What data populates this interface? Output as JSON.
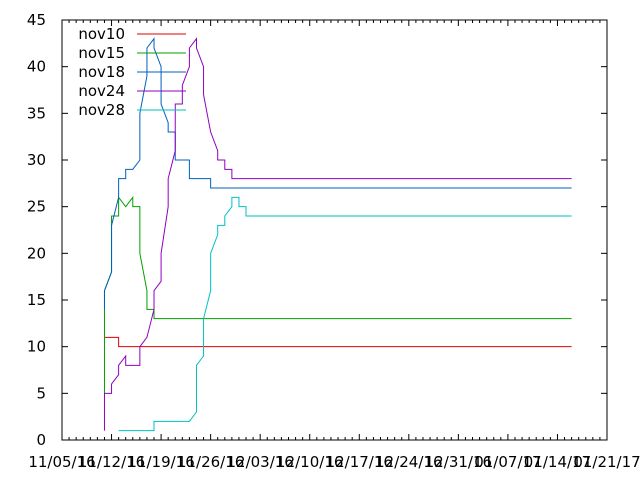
{
  "chart_data": {
    "type": "line",
    "x_tick_labels": [
      "11/05/16",
      "11/12/16",
      "11/19/16",
      "11/26/16",
      "12/03/16",
      "12/10/16",
      "12/17/16",
      "12/24/16",
      "12/31/16",
      "01/07/17",
      "01/14/17",
      "01/21/17"
    ],
    "y_ticks": [
      0,
      5,
      10,
      15,
      20,
      25,
      30,
      35,
      40,
      45
    ],
    "ylim": [
      0,
      45
    ],
    "xlim": [
      "2016-11-05",
      "2017-01-21"
    ],
    "grid": false,
    "legend_position": "top-left",
    "series": [
      {
        "name": "nov10",
        "color": "#e00000",
        "points": [
          [
            "2016-11-11",
            11
          ],
          [
            "2016-11-13",
            11
          ],
          [
            "2016-11-13",
            10
          ],
          [
            "2017-01-16",
            10
          ]
        ]
      },
      {
        "name": "nov15",
        "color": "#00a000",
        "points": [
          [
            "2016-11-11",
            5
          ],
          [
            "2016-11-11",
            16
          ],
          [
            "2016-11-12",
            18
          ],
          [
            "2016-11-12",
            24
          ],
          [
            "2016-11-13",
            24
          ],
          [
            "2016-11-13",
            26
          ],
          [
            "2016-11-14",
            25
          ],
          [
            "2016-11-15",
            26
          ],
          [
            "2016-11-15",
            25
          ],
          [
            "2016-11-16",
            25
          ],
          [
            "2016-11-16",
            20
          ],
          [
            "2016-11-17",
            16
          ],
          [
            "2016-11-17",
            14
          ],
          [
            "2016-11-18",
            14
          ],
          [
            "2016-11-18",
            13
          ],
          [
            "2017-01-16",
            13
          ]
        ]
      },
      {
        "name": "nov18",
        "color": "#0060c0",
        "points": [
          [
            "2016-11-11",
            14
          ],
          [
            "2016-11-11",
            16
          ],
          [
            "2016-11-12",
            18
          ],
          [
            "2016-11-12",
            23
          ],
          [
            "2016-11-13",
            26
          ],
          [
            "2016-11-13",
            28
          ],
          [
            "2016-11-14",
            28
          ],
          [
            "2016-11-14",
            29
          ],
          [
            "2016-11-15",
            29
          ],
          [
            "2016-11-16",
            30
          ],
          [
            "2016-11-16",
            35
          ],
          [
            "2016-11-17",
            39
          ],
          [
            "2016-11-17",
            42
          ],
          [
            "2016-11-18",
            43
          ],
          [
            "2016-11-18",
            42
          ],
          [
            "2016-11-19",
            40
          ],
          [
            "2016-11-19",
            36
          ],
          [
            "2016-11-20",
            34
          ],
          [
            "2016-11-20",
            33
          ],
          [
            "2016-11-21",
            33
          ],
          [
            "2016-11-21",
            30
          ],
          [
            "2016-11-22",
            30
          ],
          [
            "2016-11-23",
            30
          ],
          [
            "2016-11-23",
            28
          ],
          [
            "2016-11-25",
            28
          ],
          [
            "2016-11-26",
            28
          ],
          [
            "2016-11-26",
            27
          ],
          [
            "2017-01-16",
            27
          ]
        ]
      },
      {
        "name": "nov24",
        "color": "#9000c0",
        "points": [
          [
            "2016-11-11",
            1
          ],
          [
            "2016-11-11",
            5
          ],
          [
            "2016-11-12",
            5
          ],
          [
            "2016-11-12",
            6
          ],
          [
            "2016-11-13",
            7
          ],
          [
            "2016-11-13",
            8
          ],
          [
            "2016-11-14",
            9
          ],
          [
            "2016-11-14",
            8
          ],
          [
            "2016-11-15",
            8
          ],
          [
            "2016-11-16",
            8
          ],
          [
            "2016-11-16",
            10
          ],
          [
            "2016-11-17",
            11
          ],
          [
            "2016-11-18",
            14
          ],
          [
            "2016-11-18",
            16
          ],
          [
            "2016-11-19",
            17
          ],
          [
            "2016-11-19",
            20
          ],
          [
            "2016-11-20",
            25
          ],
          [
            "2016-11-20",
            28
          ],
          [
            "2016-11-21",
            31
          ],
          [
            "2016-11-21",
            36
          ],
          [
            "2016-11-22",
            36
          ],
          [
            "2016-11-22",
            38
          ],
          [
            "2016-11-23",
            40
          ],
          [
            "2016-11-23",
            42
          ],
          [
            "2016-11-24",
            43
          ],
          [
            "2016-11-24",
            42
          ],
          [
            "2016-11-25",
            40
          ],
          [
            "2016-11-25",
            37
          ],
          [
            "2016-11-26",
            33
          ],
          [
            "2016-11-27",
            31
          ],
          [
            "2016-11-27",
            30
          ],
          [
            "2016-11-28",
            30
          ],
          [
            "2016-11-28",
            29
          ],
          [
            "2016-11-29",
            29
          ],
          [
            "2016-11-29",
            28
          ],
          [
            "2017-01-16",
            28
          ]
        ]
      },
      {
        "name": "nov28",
        "color": "#00c0c0",
        "points": [
          [
            "2016-11-13",
            1
          ],
          [
            "2016-11-17",
            1
          ],
          [
            "2016-11-18",
            1
          ],
          [
            "2016-11-18",
            2
          ],
          [
            "2016-11-20",
            2
          ],
          [
            "2016-11-22",
            2
          ],
          [
            "2016-11-23",
            2
          ],
          [
            "2016-11-24",
            3
          ],
          [
            "2016-11-24",
            8
          ],
          [
            "2016-11-25",
            9
          ],
          [
            "2016-11-25",
            13
          ],
          [
            "2016-11-26",
            16
          ],
          [
            "2016-11-26",
            20
          ],
          [
            "2016-11-27",
            22
          ],
          [
            "2016-11-27",
            23
          ],
          [
            "2016-11-28",
            23
          ],
          [
            "2016-11-28",
            24
          ],
          [
            "2016-11-29",
            25
          ],
          [
            "2016-11-29",
            26
          ],
          [
            "2016-11-30",
            26
          ],
          [
            "2016-11-30",
            25
          ],
          [
            "2016-12-01",
            25
          ],
          [
            "2016-12-01",
            24
          ],
          [
            "2017-01-16",
            24
          ]
        ]
      }
    ]
  }
}
